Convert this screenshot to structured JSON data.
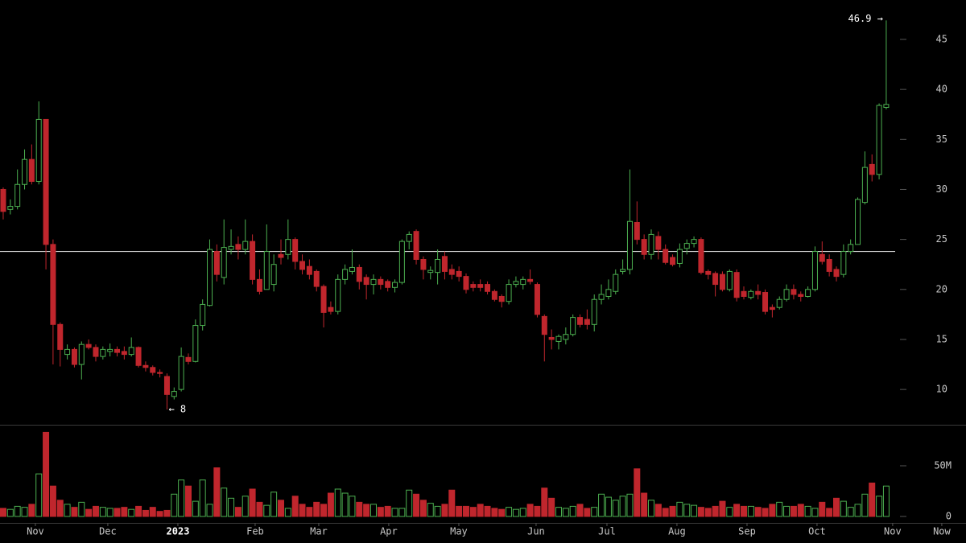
{
  "chart_data": {
    "type": "candlestick",
    "open": [
      30,
      28,
      28.3,
      30.5,
      33,
      30.8,
      37,
      24.5,
      16.5,
      13.5,
      14,
      12.5,
      14.5,
      14.2,
      13.3,
      13.8,
      14,
      13.8,
      13.5,
      14.2,
      12.4,
      12.2,
      11.7,
      11.3,
      9.3,
      10,
      13.2,
      12.8,
      16.4,
      18.4,
      23.8,
      21.2,
      24,
      24.5,
      24,
      24.8,
      21,
      20,
      20.5,
      23.5,
      23.5,
      25,
      22.8,
      22.3,
      21.8,
      20.3,
      18.2,
      17.8,
      21,
      21.8,
      22.2,
      21.2,
      20.5,
      21,
      20.8,
      20.2,
      20.7,
      24.8,
      25.8,
      23,
      21.7,
      21.7,
      23.3,
      22,
      21.8,
      21.3,
      20.5,
      20.5,
      20.5,
      19.8,
      19.3,
      18.8,
      20.5,
      20.5,
      21,
      20.5,
      17.3,
      15.2,
      14.8,
      15,
      15.5,
      17.2,
      17,
      16.5,
      19,
      19.3,
      19.8,
      21.8,
      22,
      26.7,
      25,
      23.5,
      25.3,
      24,
      23.2,
      22.6,
      24.1,
      24.6,
      25,
      21.8,
      21.6,
      21.5,
      20,
      21.7,
      19.8,
      19.2,
      19.8,
      19.7,
      18.2,
      18.2,
      19,
      20,
      19.5,
      19.3,
      20,
      23.5,
      23,
      22,
      21.5,
      23.8,
      24.5,
      28.7,
      32.5,
      31.5,
      38.2
    ],
    "high": [
      30.2,
      29,
      32,
      34,
      34.5,
      38.8,
      37,
      25,
      16.7,
      14.5,
      14.2,
      14.8,
      15,
      14.5,
      14.3,
      14.6,
      14.3,
      14.3,
      15.2,
      14.3,
      12.8,
      12.4,
      12,
      11.6,
      10.2,
      14.2,
      13.6,
      17,
      19,
      25,
      24.5,
      27,
      26,
      25.3,
      27,
      25.5,
      22,
      26.5,
      23.5,
      25,
      27,
      25.2,
      23.5,
      23,
      22,
      20.5,
      18.8,
      21.5,
      22.5,
      24,
      22.5,
      21.5,
      21.5,
      21.3,
      21,
      21,
      25,
      25.8,
      26,
      23.3,
      22.3,
      24,
      23.8,
      22.5,
      22.3,
      21.6,
      20.8,
      21,
      20.8,
      20,
      19.5,
      21,
      21.3,
      21.3,
      22,
      20.7,
      17.5,
      16,
      15.5,
      16.2,
      17.5,
      17.5,
      18,
      19.5,
      20.5,
      21,
      22,
      23,
      32,
      28.8,
      25.5,
      26,
      25.8,
      24.5,
      23.5,
      24.6,
      25,
      25.3,
      25.2,
      22,
      21.8,
      21.8,
      22,
      22,
      20.3,
      20,
      20.5,
      20,
      18.5,
      19.3,
      20.5,
      20.5,
      19.8,
      20.3,
      24.3,
      24.8,
      23.5,
      22.3,
      24.5,
      25,
      29.2,
      33.8,
      33.5,
      38.6,
      46.9
    ],
    "low": [
      27,
      27.5,
      28,
      30,
      30.5,
      30.5,
      22,
      12.5,
      12.3,
      13,
      12.2,
      11,
      14,
      12.8,
      13,
      13.3,
      13.3,
      13,
      13.3,
      12.2,
      11.8,
      11.4,
      11.2,
      8,
      9,
      9.8,
      12.5,
      12.7,
      15.9,
      18.3,
      20.8,
      20.5,
      23.5,
      23,
      23.5,
      20.5,
      19.5,
      20,
      19.8,
      22.5,
      23,
      22,
      21.5,
      21,
      19.8,
      16.2,
      17.5,
      17.5,
      20.5,
      21.5,
      20,
      19,
      19.5,
      20,
      19.8,
      19.7,
      20.5,
      24,
      22.5,
      21,
      21,
      20.5,
      21,
      21,
      20.8,
      19.6,
      19.8,
      19.8,
      19.5,
      18.8,
      18.2,
      18.5,
      20.2,
      20,
      20.5,
      17.2,
      12.8,
      14,
      14,
      14.5,
      15.3,
      16.2,
      16,
      15.8,
      18.5,
      19,
      19.5,
      21.5,
      21.5,
      24.5,
      23,
      23,
      23,
      22.5,
      22.3,
      22.2,
      23.5,
      24.2,
      21.5,
      21,
      19.3,
      19.8,
      19.8,
      18.8,
      19,
      19,
      19,
      17.5,
      17.2,
      18,
      18.8,
      19,
      18.8,
      19.2,
      19.8,
      22.5,
      21.3,
      20.8,
      21.2,
      23.5,
      24.5,
      28.5,
      30.8,
      31,
      38
    ],
    "close": [
      27.8,
      28.3,
      30.5,
      33,
      30.8,
      37,
      24.5,
      16.5,
      14,
      14,
      12.5,
      14.5,
      14.2,
      13.3,
      14,
      14,
      13.7,
      13.5,
      14.2,
      12.4,
      12.2,
      11.7,
      11.6,
      9.5,
      9.8,
      13.3,
      12.8,
      16.4,
      18.5,
      24,
      21.5,
      24.2,
      24.3,
      24,
      24.8,
      21,
      19.8,
      23.8,
      22.5,
      23.2,
      25,
      22.8,
      22,
      21.5,
      20.3,
      17.7,
      17.8,
      21,
      22,
      22.2,
      20.8,
      20.5,
      21,
      20.5,
      20.2,
      20.7,
      24.8,
      25.5,
      23,
      22,
      21.9,
      23,
      21.8,
      21.5,
      21.3,
      20,
      20.2,
      20.2,
      19.8,
      19,
      18.8,
      20.5,
      20.8,
      21,
      20.8,
      17.5,
      15.5,
      15,
      15.3,
      15.5,
      17.2,
      16.5,
      16.5,
      19,
      19.5,
      20,
      21.5,
      22,
      26.8,
      25,
      23.5,
      25.5,
      24,
      22.7,
      22.5,
      24,
      24.6,
      25,
      21.7,
      21.5,
      20.5,
      20,
      21.8,
      19.2,
      19.3,
      19.8,
      19.5,
      17.8,
      18,
      19,
      20,
      19.5,
      19.3,
      20,
      23.8,
      22.8,
      21.8,
      21.3,
      23.8,
      24.5,
      29,
      32.2,
      31.5,
      38.4,
      38.5
    ],
    "volume": [
      8,
      7,
      10,
      9,
      12,
      42,
      83,
      30,
      16,
      12,
      9,
      14,
      7,
      10,
      9,
      8,
      8,
      9,
      7,
      10,
      6,
      9,
      5,
      6,
      22,
      36,
      30,
      15,
      36,
      12,
      48,
      28,
      18,
      9,
      20,
      27,
      14,
      11,
      24,
      16,
      8,
      20,
      12,
      9,
      14,
      12,
      23,
      27,
      23,
      20,
      14,
      12,
      12,
      9,
      10,
      8,
      8,
      26,
      22,
      16,
      13,
      10,
      12,
      26,
      10,
      10,
      9,
      12,
      10,
      8,
      7,
      9,
      7,
      8,
      12,
      10,
      28,
      18,
      9,
      8,
      10,
      12,
      8,
      9,
      22,
      19,
      16,
      20,
      22,
      47,
      23,
      16,
      12,
      8,
      10,
      14,
      12,
      11,
      9,
      8,
      10,
      15,
      9,
      12,
      10,
      10,
      9,
      8,
      12,
      14,
      10,
      10,
      12,
      10,
      8,
      14,
      8,
      18,
      15,
      9,
      12,
      22,
      33,
      20,
      30
    ],
    "up_color": "#4caf50",
    "down_color": "#c0262d",
    "xlim": [
      -0.45,
      135.2
    ],
    "xticks": [
      {
        "value": 4.52,
        "label": "Nov"
      },
      {
        "value": 14.69,
        "label": "Dec"
      },
      {
        "value": 24.53,
        "label": "2023"
      },
      {
        "value": 35.38,
        "label": "Feb"
      },
      {
        "value": 44.31,
        "label": "Mar"
      },
      {
        "value": 54.14,
        "label": "Apr"
      },
      {
        "value": 63.98,
        "label": "May"
      },
      {
        "value": 74.83,
        "label": "Jun"
      },
      {
        "value": 84.78,
        "label": "Jul"
      },
      {
        "value": 94.61,
        "label": "Aug"
      },
      {
        "value": 104.45,
        "label": "Sep"
      },
      {
        "value": 114.28,
        "label": "Oct"
      },
      {
        "value": 124.9,
        "label": "Nov"
      },
      {
        "value": 131.8,
        "label": "Now"
      }
    ],
    "ylim": [
      6.47,
      48.94
    ],
    "yticks": [
      10,
      15,
      20,
      25,
      30,
      35,
      40,
      45
    ],
    "volume_lim": [
      -6.35,
      88.9
    ],
    "volume_ticks": [
      0,
      {
        "value": 50,
        "label": "50M"
      }
    ],
    "hline": 23.8,
    "annotations": [
      {
        "value": 46.9,
        "label": "46.9 →"
      },
      {
        "value": 8,
        "label": "← 8"
      }
    ]
  }
}
